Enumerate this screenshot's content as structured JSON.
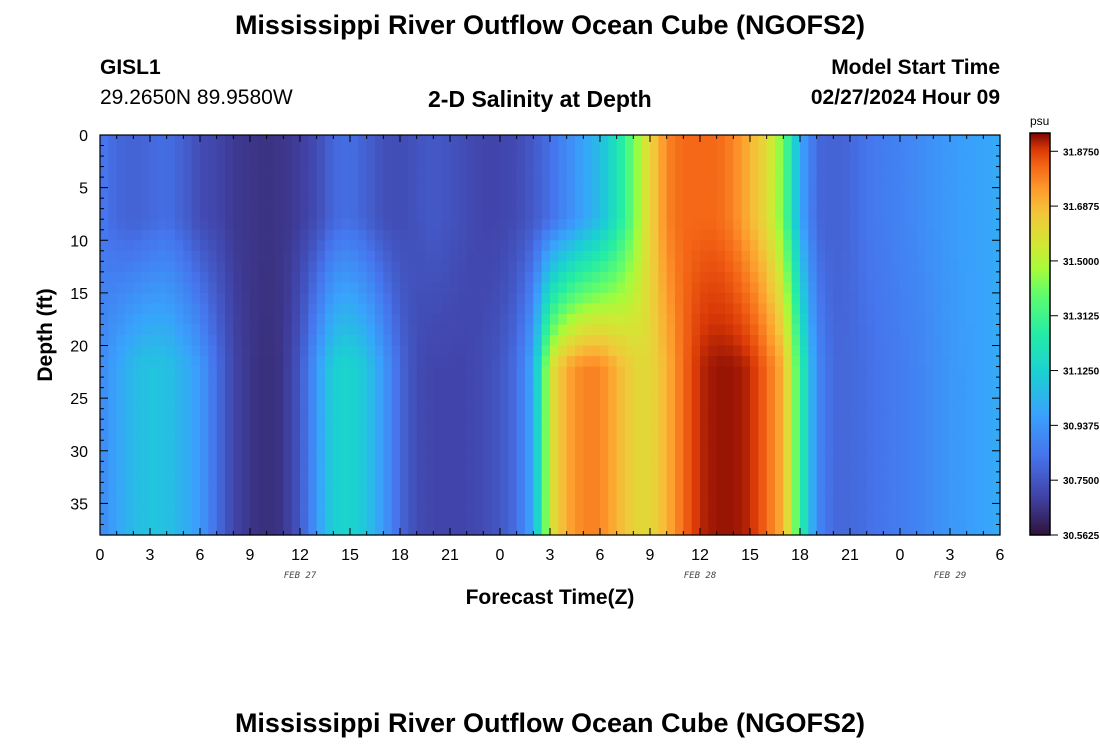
{
  "page": {
    "title": "Mississippi River Outflow Ocean Cube (NGOFS2)",
    "title_bottom": "Mississippi River Outflow Ocean Cube (NGOFS2)"
  },
  "header": {
    "station": "GISL1",
    "coords": "29.2650N  89.9580W",
    "subtitle": "2-D Salinity at Depth",
    "model_start_label": "Model Start Time",
    "model_start_value": "02/27/2024 Hour 09"
  },
  "chart_data": {
    "type": "heatmap",
    "title": "2-D Salinity at Depth",
    "xlabel": "Forecast Time(Z)",
    "ylabel": "Depth (ft)",
    "x_range_hours": [
      0,
      54
    ],
    "y_range_ft": [
      0,
      38
    ],
    "y_inverted": true,
    "x_ticks": [
      "0",
      "3",
      "6",
      "9",
      "12",
      "15",
      "18",
      "21",
      "0",
      "3",
      "6",
      "9",
      "12",
      "15",
      "18",
      "21",
      "0",
      "3",
      "6"
    ],
    "x_day_labels": [
      "FEB 27",
      "FEB 28",
      "FEB 29"
    ],
    "y_ticks": [
      "0",
      "5",
      "10",
      "15",
      "20",
      "25",
      "30",
      "35"
    ],
    "colorbar": {
      "unit": "psu",
      "min": 30.5625,
      "max": 31.9375,
      "labels": [
        "31.8750",
        "31.6875",
        "31.5000",
        "31.3125",
        "31.1250",
        "30.9375",
        "30.7500",
        "30.5625"
      ]
    },
    "colors": {
      "low": "#30123b",
      "mid": "#a4fc3c",
      "high": "#7a0403"
    },
    "salinity_profile": {
      "description_hours": [
        0,
        1,
        2,
        3,
        4,
        5,
        6,
        7,
        8,
        9,
        10,
        11,
        12,
        13,
        14,
        15,
        16,
        17,
        18,
        19,
        20,
        21,
        22,
        23,
        24,
        25,
        26,
        27,
        28,
        29,
        30,
        31,
        32,
        33,
        34,
        35,
        36,
        37,
        38,
        39,
        40,
        41,
        42,
        43,
        44,
        45,
        46,
        47,
        48,
        49,
        50,
        51,
        52,
        53,
        54
      ],
      "surface": [
        30.85,
        30.8,
        30.78,
        30.8,
        30.82,
        30.78,
        30.72,
        30.7,
        30.67,
        30.66,
        30.65,
        30.66,
        30.68,
        30.72,
        30.8,
        30.82,
        30.78,
        30.73,
        30.72,
        30.74,
        30.76,
        30.74,
        30.72,
        30.7,
        30.7,
        30.72,
        30.76,
        30.82,
        30.9,
        30.98,
        31.05,
        31.2,
        31.4,
        31.62,
        31.78,
        31.82,
        31.82,
        31.82,
        31.78,
        31.7,
        31.6,
        31.4,
        31.0,
        30.8,
        30.78,
        30.8,
        30.84,
        30.86,
        30.88,
        30.9,
        30.93,
        30.95,
        30.97,
        30.98,
        31.0
      ],
      "bottom": [
        30.9,
        30.98,
        31.05,
        31.08,
        31.07,
        31.02,
        30.95,
        30.82,
        30.7,
        30.66,
        30.64,
        30.66,
        30.75,
        30.95,
        31.12,
        31.14,
        31.08,
        30.95,
        30.8,
        30.72,
        30.7,
        30.7,
        30.7,
        30.72,
        30.75,
        30.82,
        31.0,
        31.55,
        31.72,
        31.78,
        31.78,
        31.7,
        31.62,
        31.6,
        31.7,
        31.82,
        31.9,
        31.92,
        31.92,
        31.9,
        31.82,
        31.7,
        31.3,
        30.9,
        30.8,
        30.8,
        30.82,
        30.84,
        30.86,
        30.88,
        30.91,
        30.94,
        30.96,
        30.98,
        31.0
      ]
    }
  }
}
